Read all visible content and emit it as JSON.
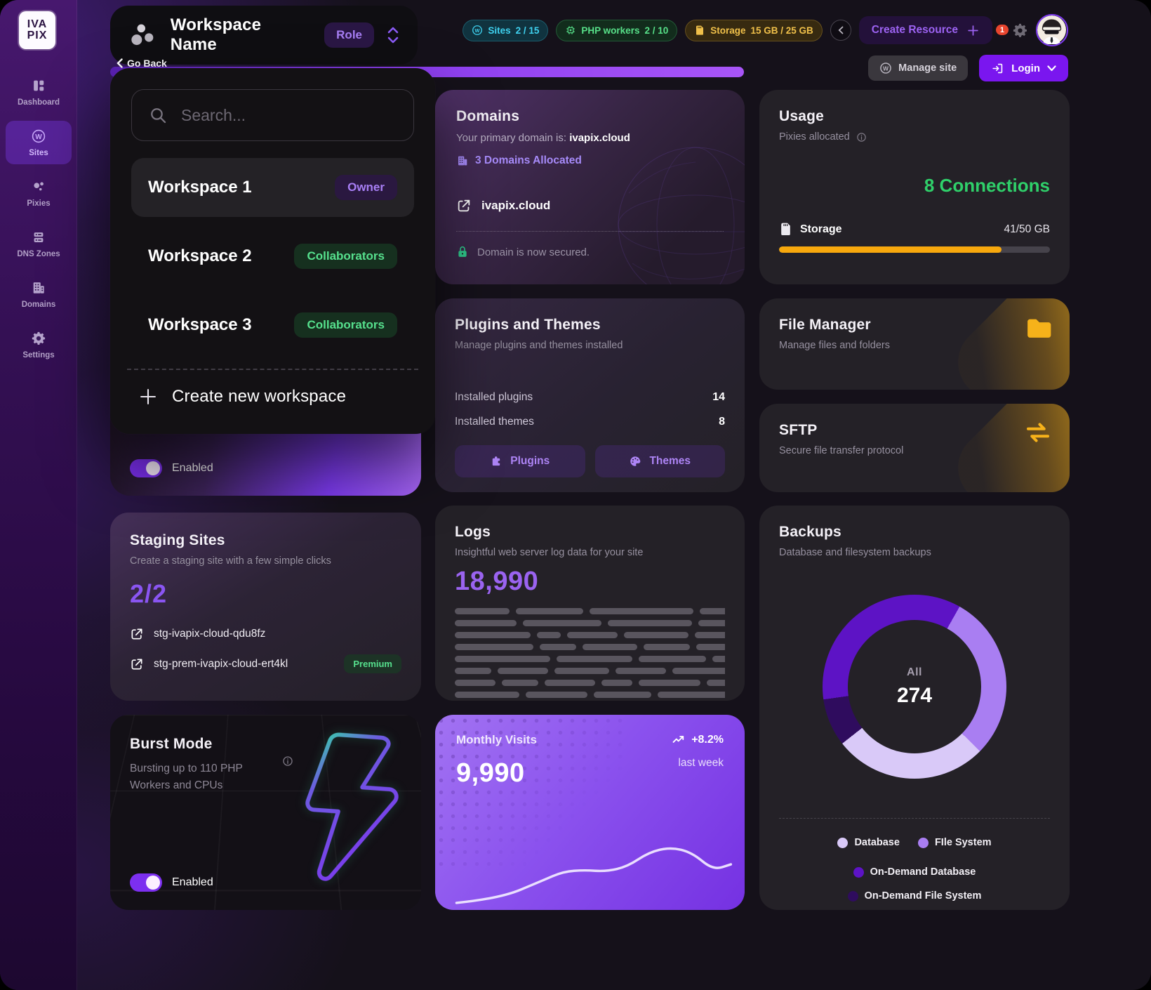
{
  "app": {
    "logo_top": "IVA",
    "logo_bottom": "PIX"
  },
  "colors": {
    "accent": "#7c3aed",
    "accent_light": "#a78bfa",
    "green": "#56e08d",
    "amber": "#f7a80d",
    "cyan": "#3fd2f0",
    "danger": "#e8452e"
  },
  "sidebar": {
    "items": [
      {
        "label": "Dashboard",
        "icon": "dashboard-grid"
      },
      {
        "label": "Sites",
        "icon": "wordpress",
        "active": true
      },
      {
        "label": "Pixies",
        "icon": "dots-cluster"
      },
      {
        "label": "DNS Zones",
        "icon": "server-stack"
      },
      {
        "label": "Domains",
        "icon": "building"
      },
      {
        "label": "Settings",
        "icon": "gear"
      }
    ]
  },
  "header": {
    "go_back": "Go Back",
    "workspace_name": "Workspace Name",
    "role_badge": "Role",
    "resource_badges": [
      {
        "label": "Sites",
        "value": "2 / 15",
        "color": "#3fd2f0",
        "icon": "wordpress"
      },
      {
        "label": "PHP workers",
        "value": "2 / 10",
        "color": "#57e089",
        "icon": "chip"
      },
      {
        "label": "Storage",
        "value": "15 GB / 25 GB",
        "color": "#f0c04a",
        "icon": "sd-card"
      }
    ],
    "create_resource_label": "Create Resource",
    "notifications_count": "1",
    "manage_site_label": "Manage site",
    "login_label": "Login"
  },
  "workspace_menu": {
    "search_placeholder": "Search...",
    "items": [
      {
        "name": "Workspace 1",
        "badge": "Owner"
      },
      {
        "name": "Workspace 2",
        "badge": "Collaborators"
      },
      {
        "name": "Workspace 3",
        "badge": "Collaborators"
      }
    ],
    "create_label": "Create new workspace"
  },
  "cards": {
    "hidden_panel": {
      "enabled_label": "Enabled"
    },
    "domains": {
      "title": "Domains",
      "subtitle_prefix": "Your primary domain is:",
      "primary_domain": "ivapix.cloud",
      "allocated_label": "3 Domains Allocated",
      "link_label": "ivapix.cloud",
      "secured_label": "Domain is now secured."
    },
    "usage": {
      "title": "Usage",
      "subtitle": "Pixies allocated",
      "connections_label": "8 Connections",
      "storage_label": "Storage",
      "storage_value": "41/50 GB",
      "storage_pct": 82
    },
    "plugins": {
      "title": "Plugins and Themes",
      "subtitle": "Manage plugins and themes installed",
      "row1_label": "Installed plugins",
      "row1_value": "14",
      "row2_label": "Installed themes",
      "row2_value": "8",
      "btn_plugins": "Plugins",
      "btn_themes": "Themes"
    },
    "file_manager": {
      "title": "File Manager",
      "subtitle": "Manage files and folders"
    },
    "sftp": {
      "title": "SFTP",
      "subtitle": "Secure file transfer protocol"
    },
    "staging": {
      "title": "Staging Sites",
      "subtitle": "Create a staging site with a few simple clicks",
      "count": "2/2",
      "links": [
        {
          "label": "stg-ivapix-cloud-qdu8fz"
        },
        {
          "label": "stg-prem-ivapix-cloud-ert4kl",
          "badge": "Premium"
        }
      ]
    },
    "logs": {
      "title": "Logs",
      "subtitle": "Insightful web server log data for your site",
      "count": "18,990",
      "bars": [
        [
          78,
          96,
          148,
          72,
          110
        ],
        [
          88,
          112,
          120,
          96,
          110
        ],
        [
          108,
          34,
          72,
          92,
          108,
          64
        ],
        [
          112,
          52,
          78,
          66,
          44,
          62,
          92
        ],
        [
          136,
          108,
          96,
          92,
          110
        ],
        [
          52,
          72,
          78,
          72,
          82,
          52,
          92
        ],
        [
          58,
          52,
          72,
          44,
          88,
          66,
          84
        ],
        [
          92,
          88,
          82,
          106,
          68,
          92
        ]
      ]
    },
    "backups": {
      "title": "Backups",
      "subtitle": "Database and filesystem backups"
    },
    "burst": {
      "title": "Burst Mode",
      "subtitle": "Bursting up to 110 PHP Workers and CPUs",
      "enabled_label": "Enabled"
    },
    "visits": {
      "title": "Monthly Visits",
      "value": "9,990",
      "delta": "+8.2%",
      "period": "last week"
    }
  },
  "chart_data": [
    {
      "type": "pie",
      "title": "Backups",
      "center_label": "All",
      "center_value": "274",
      "labels": [
        "Database",
        "FIle System",
        "On-Demand Database",
        "On-Demand File System"
      ],
      "values": [
        74,
        80,
        97,
        23
      ],
      "colors": [
        "#d9c9f8",
        "#a97ef2",
        "#5d13c5",
        "#2f0c5e"
      ],
      "draw_order": [
        2,
        1,
        0,
        3
      ],
      "start_deg": 262,
      "legend_position": "bottom"
    },
    {
      "type": "line",
      "title": "Monthly Visits",
      "current": "9,990",
      "delta_pct": 8.2,
      "period": "last week",
      "x": [
        30,
        90,
        150,
        180,
        210,
        240,
        270,
        300,
        330,
        360,
        390,
        415
      ],
      "y": [
        4,
        10,
        35,
        48,
        50,
        48,
        55,
        75,
        82,
        75,
        50,
        58
      ],
      "note": "unlabeled sparkline; y is relative visit level"
    }
  ]
}
